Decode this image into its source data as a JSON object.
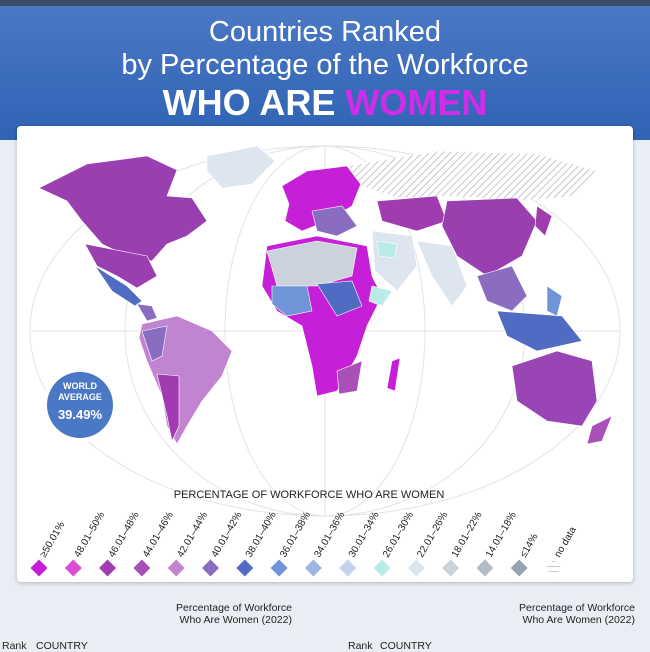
{
  "header": {
    "line1": "Countries Ranked",
    "line2": "by Percentage of the Workforce",
    "line3a": "WHO ARE",
    "line3b": "WOMEN"
  },
  "badge": {
    "line1": "WORLD",
    "line2": "AVERAGE",
    "value": "39.49%"
  },
  "legend": {
    "title": "PERCENTAGE OF WORKFORCE WHO ARE WOMEN",
    "items": [
      {
        "label": "≥50.01%",
        "color": "#c61fd8"
      },
      {
        "label": "48.01–50%",
        "color": "#d84fd6"
      },
      {
        "label": "46.01–48%",
        "color": "#a03bb0"
      },
      {
        "label": "44.01–46%",
        "color": "#a94fb8"
      },
      {
        "label": "42.01–44%",
        "color": "#c184d0"
      },
      {
        "label": "40.01–42%",
        "color": "#8a6cc0"
      },
      {
        "label": "38.01–40%",
        "color": "#4f6cc2"
      },
      {
        "label": "36.01–38%",
        "color": "#6f95d8"
      },
      {
        "label": "34.01–36%",
        "color": "#9bb6e2"
      },
      {
        "label": "30.01–34%",
        "color": "#c3d4ee"
      },
      {
        "label": "26.01–30%",
        "color": "#b9ebea"
      },
      {
        "label": "22.01–26%",
        "color": "#dde6ee"
      },
      {
        "label": "18.01–22%",
        "color": "#cbd2db"
      },
      {
        "label": "14.01–18%",
        "color": "#b4bcc8"
      },
      {
        "label": "≤14%",
        "color": "#98a2b0"
      },
      {
        "label": "no data",
        "color": "hatch"
      }
    ]
  },
  "table": {
    "left": {
      "rank": "Rank",
      "country": "COUNTRY",
      "pct": "Percentage of Workforce Who Are Women (2022)"
    },
    "right": {
      "rank": "Rank",
      "country": "COUNTRY",
      "pct": "Percentage of Workforce Who Are Women (2022)"
    }
  }
}
